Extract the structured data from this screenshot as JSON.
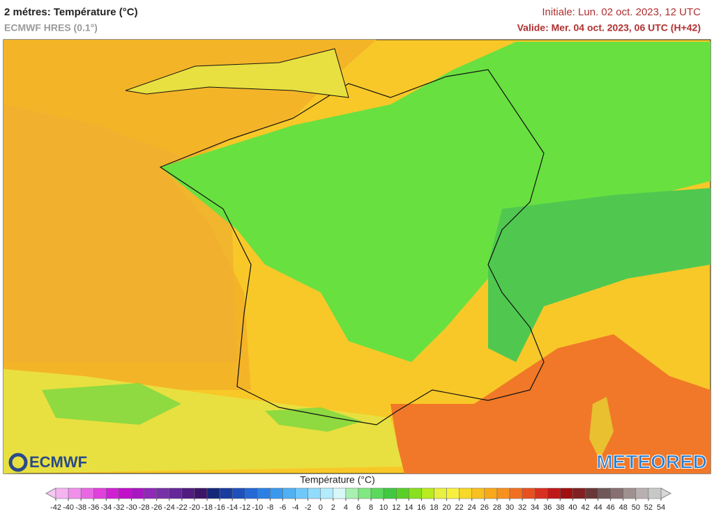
{
  "header": {
    "title": "2 métres: Température (°C)",
    "subtitle": "ECMWF HRES (0.1°)",
    "initial": "Initiale: Lun. 02 oct. 2023, 12 UTC",
    "valid": "Valide: Mer. 04 oct. 2023, 06 UTC (H+42)"
  },
  "logos": {
    "left": "ECMWF",
    "right": "METEORED"
  },
  "legend": {
    "title": "Température (°C)",
    "ticks": [
      -42,
      -40,
      -38,
      -36,
      -34,
      -32,
      -30,
      -28,
      -26,
      -24,
      -22,
      -20,
      -18,
      -16,
      -14,
      -12,
      -10,
      -8,
      -6,
      -4,
      -2,
      0,
      2,
      4,
      6,
      8,
      10,
      12,
      14,
      16,
      18,
      20,
      22,
      24,
      26,
      28,
      30,
      32,
      34,
      36,
      38,
      40,
      42,
      44,
      46,
      48,
      50,
      52,
      54
    ],
    "under_color": "#f7c8f4",
    "over_color": "#d8d8d8",
    "colors": [
      "#f4b4f0",
      "#f090ec",
      "#e868e4",
      "#e040dc",
      "#d020d4",
      "#c010c8",
      "#a818c0",
      "#9028b8",
      "#7830a8",
      "#642898",
      "#501c80",
      "#3c1468",
      "#142878",
      "#1a3c9c",
      "#1e50bc",
      "#2468d4",
      "#2c80e4",
      "#3a98ee",
      "#50b0f4",
      "#70c8fa",
      "#90dcfc",
      "#b4ecfc",
      "#d8f8f8",
      "#a8f0b0",
      "#80e880",
      "#5cd85c",
      "#40c840",
      "#58d028",
      "#88e020",
      "#b8ec20",
      "#e8f040",
      "#f8f040",
      "#f8d828",
      "#f8c020",
      "#f8a818",
      "#f89020",
      "#f07020",
      "#e85020",
      "#d83020",
      "#c01818",
      "#a01010",
      "#802020",
      "#683838",
      "#705858",
      "#887070",
      "#a09090",
      "#b8b0b0",
      "#c8c8c8"
    ]
  }
}
